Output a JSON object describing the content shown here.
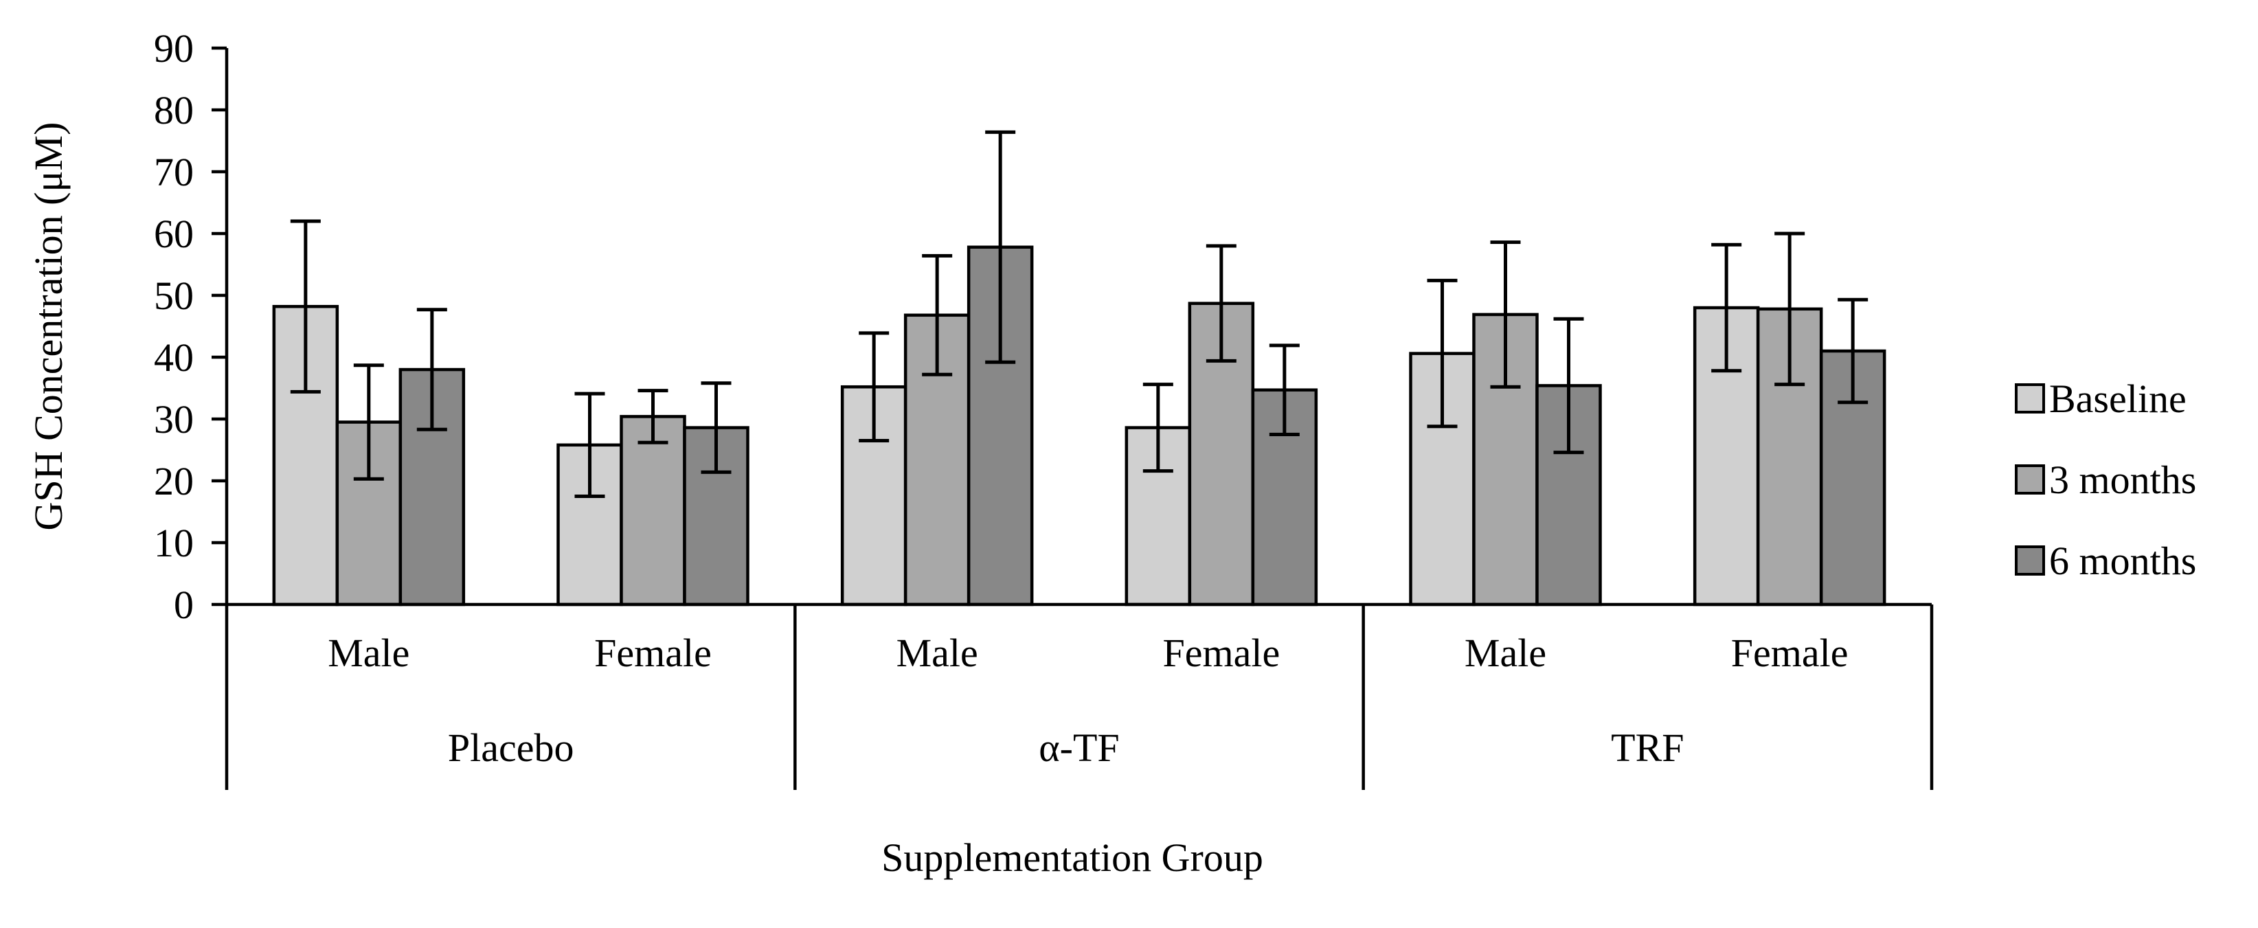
{
  "chart_data": {
    "type": "bar",
    "title": "",
    "xlabel": "Supplementation Group",
    "ylabel": "GSH Concentration (μM)",
    "ylim": [
      0,
      90
    ],
    "yticks": [
      0,
      10,
      20,
      30,
      40,
      50,
      60,
      70,
      80,
      90
    ],
    "grid": false,
    "legend_position": "right",
    "groups": [
      {
        "label": "Placebo",
        "categories": [
          "Male",
          "Female"
        ]
      },
      {
        "label": "α-TF",
        "categories": [
          "Male",
          "Female"
        ]
      },
      {
        "label": "TRF",
        "categories": [
          "Male",
          "Female"
        ]
      }
    ],
    "categories": [
      "Male",
      "Female",
      "Male",
      "Female",
      "Male",
      "Female"
    ],
    "series": [
      {
        "name": "Baseline",
        "color": "#d0d0d0",
        "values": [
          48.2,
          25.8,
          35.2,
          28.6,
          40.6,
          48.0
        ],
        "error": [
          13.8,
          8.3,
          8.7,
          7.0,
          11.8,
          10.2
        ]
      },
      {
        "name": "3 months",
        "color": "#a8a8a8",
        "values": [
          29.5,
          30.4,
          46.8,
          48.7,
          46.9,
          47.8
        ],
        "error": [
          9.2,
          4.2,
          9.6,
          9.3,
          11.7,
          12.2
        ]
      },
      {
        "name": "6 months",
        "color": "#888888",
        "values": [
          38.0,
          28.6,
          57.8,
          34.7,
          35.4,
          41.0
        ],
        "error": [
          9.7,
          7.2,
          18.6,
          7.2,
          10.8,
          8.3
        ]
      }
    ]
  }
}
